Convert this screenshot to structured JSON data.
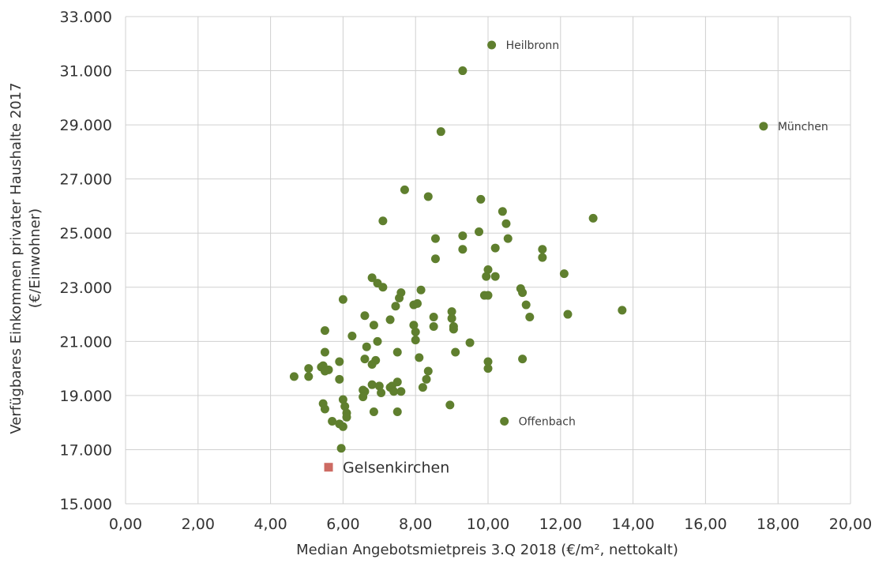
{
  "chart_data": {
    "type": "scatter",
    "title": "",
    "xlabel": "Median Angebotsmietpreis 3.Q 2018 (€/m², nettokalt)",
    "ylabel_lines": [
      "Verfügbares Einkommen privater Haushalte 2017",
      "(€/Einwohner)"
    ],
    "xlim": [
      0,
      20
    ],
    "ylim": [
      15000,
      33000
    ],
    "x_ticks": [
      0,
      2,
      4,
      6,
      8,
      10,
      12,
      14,
      16,
      18,
      20
    ],
    "x_tick_labels": [
      "0,00",
      "2,00",
      "4,00",
      "6,00",
      "8,00",
      "10,00",
      "12,00",
      "14,00",
      "16,00",
      "18,00",
      "20,00"
    ],
    "y_ticks": [
      15000,
      17000,
      19000,
      21000,
      23000,
      25000,
      27000,
      29000,
      31000,
      33000
    ],
    "y_tick_labels": [
      "15.000",
      "17.000",
      "19.000",
      "21.000",
      "23.000",
      "25.000",
      "27.000",
      "29.000",
      "31.000",
      "33.000"
    ],
    "grid": true,
    "colors": {
      "points": "#5f7f2e",
      "highlight": "#cd6b63",
      "grid": "#d0d0d0"
    },
    "series": [
      {
        "marker": "circle",
        "points": [
          [
            10.1,
            31950
          ],
          [
            9.3,
            31000
          ],
          [
            17.6,
            28950
          ],
          [
            8.7,
            28750
          ],
          [
            7.7,
            26600
          ],
          [
            8.35,
            26350
          ],
          [
            9.8,
            26250
          ],
          [
            7.1,
            25450
          ],
          [
            12.9,
            25550
          ],
          [
            10.4,
            25800
          ],
          [
            10.5,
            25350
          ],
          [
            9.3,
            24900
          ],
          [
            9.75,
            25050
          ],
          [
            8.55,
            24800
          ],
          [
            10.55,
            24800
          ],
          [
            10.2,
            24450
          ],
          [
            9.3,
            24400
          ],
          [
            11.5,
            24400
          ],
          [
            8.55,
            24050
          ],
          [
            11.5,
            24100
          ],
          [
            10.0,
            23650
          ],
          [
            9.95,
            23400
          ],
          [
            10.2,
            23400
          ],
          [
            12.1,
            23500
          ],
          [
            6.8,
            23350
          ],
          [
            6.95,
            23150
          ],
          [
            7.1,
            23000
          ],
          [
            8.15,
            22900
          ],
          [
            10.9,
            22950
          ],
          [
            10.95,
            22800
          ],
          [
            7.55,
            22600
          ],
          [
            7.6,
            22800
          ],
          [
            9.9,
            22700
          ],
          [
            10.0,
            22700
          ],
          [
            6.0,
            22550
          ],
          [
            7.45,
            22300
          ],
          [
            7.95,
            22350
          ],
          [
            8.05,
            22400
          ],
          [
            11.05,
            22350
          ],
          [
            13.7,
            22150
          ],
          [
            9.0,
            22100
          ],
          [
            12.2,
            22000
          ],
          [
            6.6,
            21950
          ],
          [
            8.5,
            21900
          ],
          [
            9.0,
            21850
          ],
          [
            11.15,
            21900
          ],
          [
            6.85,
            21600
          ],
          [
            7.3,
            21800
          ],
          [
            7.95,
            21600
          ],
          [
            8.5,
            21550
          ],
          [
            9.05,
            21550
          ],
          [
            9.05,
            21450
          ],
          [
            5.5,
            21400
          ],
          [
            8.0,
            21350
          ],
          [
            6.25,
            21200
          ],
          [
            8.0,
            21050
          ],
          [
            6.95,
            21000
          ],
          [
            9.5,
            20950
          ],
          [
            6.65,
            20800
          ],
          [
            5.5,
            20600
          ],
          [
            7.5,
            20600
          ],
          [
            9.1,
            20600
          ],
          [
            6.6,
            20350
          ],
          [
            6.9,
            20300
          ],
          [
            8.1,
            20400
          ],
          [
            10.95,
            20350
          ],
          [
            5.9,
            20250
          ],
          [
            6.8,
            20150
          ],
          [
            5.45,
            20100
          ],
          [
            10.0,
            20250
          ],
          [
            5.05,
            20000
          ],
          [
            10.0,
            20000
          ],
          [
            5.4,
            20050
          ],
          [
            5.6,
            19950
          ],
          [
            5.5,
            19900
          ],
          [
            8.35,
            19900
          ],
          [
            4.65,
            19700
          ],
          [
            5.05,
            19700
          ],
          [
            5.9,
            19600
          ],
          [
            8.3,
            19600
          ],
          [
            6.8,
            19400
          ],
          [
            6.6,
            19150
          ],
          [
            7.3,
            19300
          ],
          [
            7.35,
            19350
          ],
          [
            7.0,
            19350
          ],
          [
            7.5,
            19500
          ],
          [
            8.2,
            19300
          ],
          [
            6.55,
            19200
          ],
          [
            7.05,
            19100
          ],
          [
            7.4,
            19150
          ],
          [
            7.6,
            19150
          ],
          [
            6.55,
            18950
          ],
          [
            6.0,
            18850
          ],
          [
            5.45,
            18700
          ],
          [
            6.05,
            18600
          ],
          [
            5.5,
            18500
          ],
          [
            6.1,
            18350
          ],
          [
            8.95,
            18650
          ],
          [
            6.85,
            18400
          ],
          [
            7.5,
            18400
          ],
          [
            6.1,
            18200
          ],
          [
            5.7,
            18050
          ],
          [
            10.45,
            18050
          ],
          [
            5.9,
            17950
          ],
          [
            6.0,
            17850
          ],
          [
            5.95,
            17050
          ]
        ]
      },
      {
        "name": "Gelsenkirchen",
        "marker": "square",
        "points": [
          [
            5.6,
            16350
          ]
        ]
      }
    ],
    "annotations": [
      {
        "text": "Heilbronn",
        "x": 10.1,
        "y": 31950
      },
      {
        "text": "München",
        "x": 17.6,
        "y": 28950
      },
      {
        "text": "Offenbach",
        "x": 10.45,
        "y": 18050
      },
      {
        "text": "Gelsenkirchen",
        "x": 5.6,
        "y": 16350
      }
    ]
  }
}
